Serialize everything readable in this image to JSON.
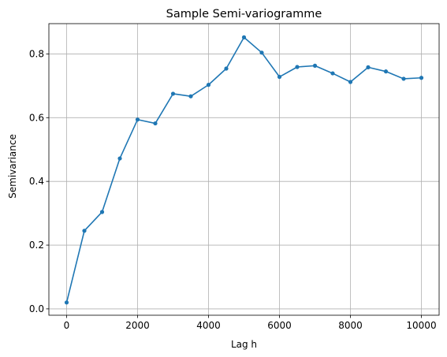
{
  "chart_data": {
    "type": "line",
    "title": "Sample Semi-variogramme",
    "xlabel": "Lag h",
    "ylabel": "Semivariance",
    "xlim": [
      -500,
      10500
    ],
    "ylim": [
      -0.02,
      0.895
    ],
    "xticks": [
      0,
      2000,
      4000,
      6000,
      8000,
      10000
    ],
    "yticks": [
      0.0,
      0.2,
      0.4,
      0.6,
      0.8
    ],
    "xtick_labels": [
      "0",
      "2000",
      "4000",
      "6000",
      "8000",
      "10000"
    ],
    "ytick_labels": [
      "0.0",
      "0.2",
      "0.4",
      "0.6",
      "0.8"
    ],
    "grid": true,
    "series": [
      {
        "color": "#1f77b4",
        "marker": "point",
        "x": [
          0,
          500,
          1000,
          1500,
          2000,
          2500,
          3000,
          3500,
          4000,
          4500,
          5000,
          5500,
          6000,
          6500,
          7000,
          7500,
          8000,
          8500,
          9000,
          9500,
          10000
        ],
        "y": [
          0.02,
          0.245,
          0.304,
          0.472,
          0.594,
          0.582,
          0.675,
          0.667,
          0.703,
          0.754,
          0.852,
          0.804,
          0.728,
          0.759,
          0.763,
          0.739,
          0.712,
          0.758,
          0.745,
          0.722,
          0.725
        ]
      }
    ]
  }
}
